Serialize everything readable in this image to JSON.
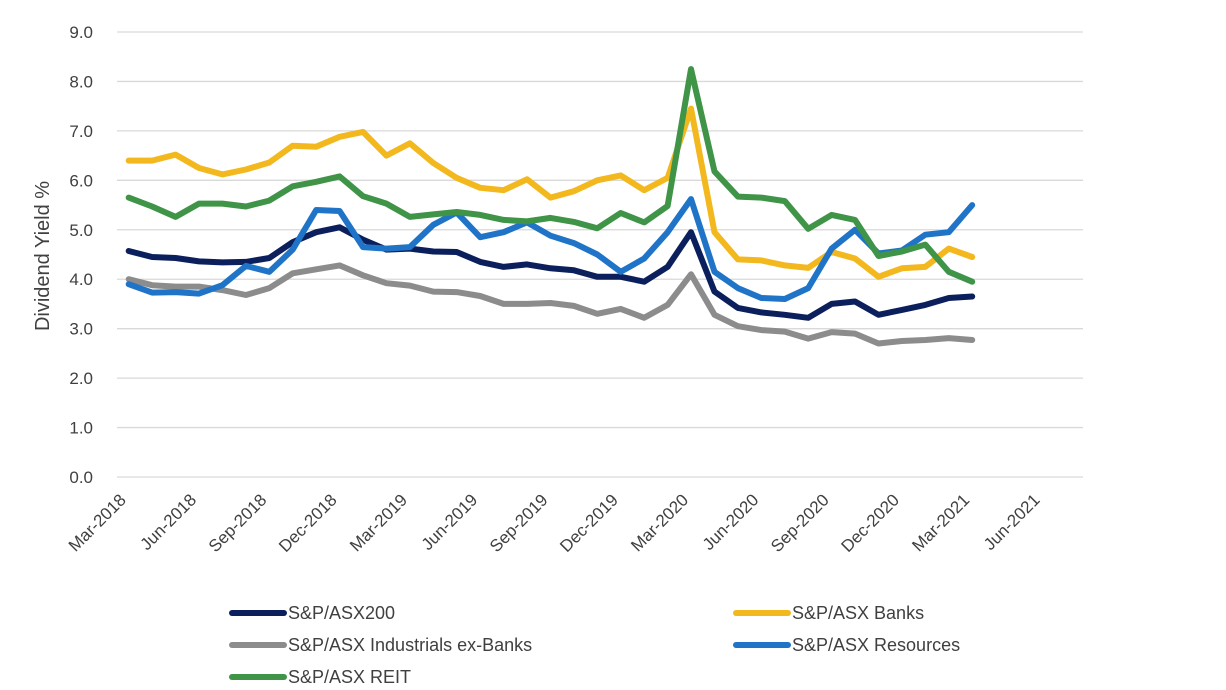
{
  "chart_data": {
    "type": "line",
    "ylabel": "Dividend Yield %",
    "xlabel": "",
    "ylim": [
      0,
      9
    ],
    "y_ticks": [
      "0.0",
      "1.0",
      "2.0",
      "3.0",
      "4.0",
      "5.0",
      "6.0",
      "7.0",
      "8.0",
      "9.0"
    ],
    "x_ticks": [
      "Mar-2018",
      "Jun-2018",
      "Sep-2018",
      "Dec-2018",
      "Mar-2019",
      "Jun-2019",
      "Sep-2019",
      "Dec-2019",
      "Mar-2020",
      "Jun-2020",
      "Sep-2020",
      "Dec-2020",
      "Mar-2021",
      "Jun-2021"
    ],
    "x": [
      "Mar-2018",
      "Apr-2018",
      "May-2018",
      "Jun-2018",
      "Jul-2018",
      "Aug-2018",
      "Sep-2018",
      "Oct-2018",
      "Nov-2018",
      "Dec-2018",
      "Jan-2019",
      "Feb-2019",
      "Mar-2019",
      "Apr-2019",
      "May-2019",
      "Jun-2019",
      "Jul-2019",
      "Aug-2019",
      "Sep-2019",
      "Oct-2019",
      "Nov-2019",
      "Dec-2019",
      "Jan-2020",
      "Feb-2020",
      "Mar-2020",
      "Apr-2020",
      "May-2020",
      "Jun-2020",
      "Jul-2020",
      "Aug-2020",
      "Sep-2020",
      "Oct-2020",
      "Nov-2020",
      "Dec-2020",
      "Jan-2021",
      "Feb-2021",
      "Mar-2021"
    ],
    "grid": true,
    "legend_position": "bottom",
    "series": [
      {
        "name": "S&P/ASX200",
        "color": "#0b1f5c",
        "values": [
          4.57,
          4.45,
          4.43,
          4.36,
          4.34,
          4.35,
          4.43,
          4.75,
          4.95,
          5.05,
          4.8,
          4.6,
          4.62,
          4.56,
          4.55,
          4.35,
          4.25,
          4.3,
          4.22,
          4.18,
          4.05,
          4.05,
          3.95,
          4.25,
          4.95,
          3.75,
          3.42,
          3.33,
          3.28,
          3.22,
          3.5,
          3.55,
          3.28,
          3.38,
          3.48,
          3.62,
          3.65
        ]
      },
      {
        "name": "S&P/ASX Banks",
        "color": "#f2b81d",
        "values": [
          6.4,
          6.4,
          6.52,
          6.25,
          6.12,
          6.22,
          6.36,
          6.7,
          6.68,
          6.88,
          6.98,
          6.5,
          6.75,
          6.35,
          6.05,
          5.85,
          5.8,
          6.02,
          5.65,
          5.78,
          6.0,
          6.1,
          5.8,
          6.05,
          7.45,
          4.95,
          4.4,
          4.38,
          4.28,
          4.23,
          4.55,
          4.42,
          4.05,
          4.22,
          4.25,
          4.62,
          4.45
        ]
      },
      {
        "name": "S&P/ASX Industrials ex-Banks",
        "color": "#8c8c8c",
        "values": [
          4.0,
          3.88,
          3.85,
          3.85,
          3.78,
          3.68,
          3.82,
          4.12,
          4.2,
          4.28,
          4.08,
          3.92,
          3.87,
          3.75,
          3.74,
          3.66,
          3.5,
          3.5,
          3.52,
          3.46,
          3.3,
          3.4,
          3.22,
          3.48,
          4.1,
          3.28,
          3.05,
          2.97,
          2.94,
          2.8,
          2.93,
          2.9,
          2.7,
          2.75,
          2.77,
          2.81,
          2.77
        ]
      },
      {
        "name": "S&P/ASX Resources",
        "color": "#1f74c7",
        "values": [
          3.9,
          3.73,
          3.74,
          3.71,
          3.88,
          4.27,
          4.15,
          4.6,
          5.4,
          5.38,
          4.65,
          4.62,
          4.65,
          5.1,
          5.35,
          4.85,
          4.95,
          5.15,
          4.88,
          4.73,
          4.5,
          4.15,
          4.42,
          4.95,
          5.62,
          4.15,
          3.82,
          3.62,
          3.6,
          3.82,
          4.62,
          5.0,
          4.52,
          4.58,
          4.9,
          4.95,
          5.5
        ]
      },
      {
        "name": "S&P/ASX REIT",
        "color": "#3f9448",
        "values": [
          5.65,
          5.47,
          5.26,
          5.53,
          5.53,
          5.47,
          5.59,
          5.88,
          5.97,
          6.08,
          5.68,
          5.53,
          5.26,
          5.31,
          5.36,
          5.3,
          5.2,
          5.17,
          5.24,
          5.16,
          5.03,
          5.34,
          5.15,
          5.48,
          8.25,
          6.18,
          5.67,
          5.65,
          5.58,
          5.02,
          5.3,
          5.2,
          4.47,
          4.56,
          4.7,
          4.15,
          3.95
        ]
      }
    ]
  }
}
